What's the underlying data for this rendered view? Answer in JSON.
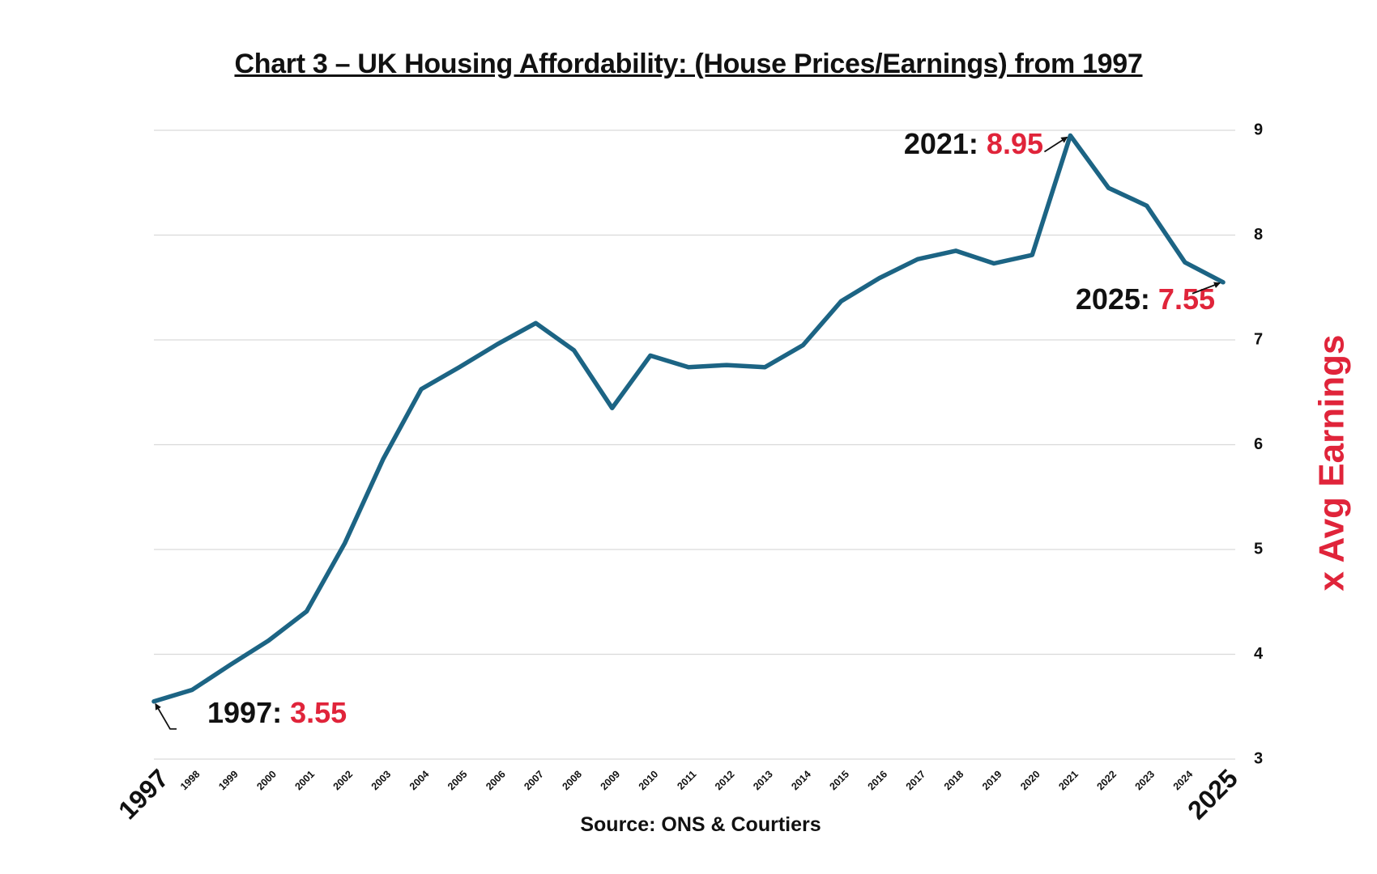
{
  "colors": {
    "line": "#1c6484",
    "accent": "#e0243a",
    "text": "#111111",
    "grid": "#d9d9d9"
  },
  "chart_data": {
    "type": "line",
    "title": "Chart 3 – UK Housing Affordability: (House Prices/Earnings) from 1997",
    "ylabel": "x Avg Earnings",
    "source": "Source: ONS & Courtiers",
    "ylim": [
      3,
      9
    ],
    "yticks": [
      3,
      4,
      5,
      6,
      7,
      8,
      9
    ],
    "y_axis_side": "right",
    "grid": true,
    "legend": "none",
    "categories": [
      "1997",
      "1998",
      "1999",
      "2000",
      "2001",
      "2002",
      "2003",
      "2004",
      "2005",
      "2006",
      "2007",
      "2008",
      "2009",
      "2010",
      "2011",
      "2012",
      "2013",
      "2014",
      "2015",
      "2016",
      "2017",
      "2018",
      "2019",
      "2020",
      "2021",
      "2022",
      "2023",
      "2024",
      "2025"
    ],
    "values": [
      3.55,
      3.66,
      3.9,
      4.13,
      4.41,
      5.06,
      5.86,
      6.53,
      6.74,
      6.96,
      7.16,
      6.9,
      6.35,
      6.85,
      6.74,
      6.76,
      6.74,
      6.95,
      7.37,
      7.59,
      7.77,
      7.85,
      7.73,
      7.81,
      8.95,
      8.45,
      8.28,
      7.74,
      7.55
    ],
    "annotations": [
      {
        "year": "1997",
        "year_label": "1997:",
        "value_label": "3.55"
      },
      {
        "year": "2021",
        "year_label": "2021:",
        "value_label": "8.95"
      },
      {
        "year": "2025",
        "year_label": "2025:",
        "value_label": "7.55"
      }
    ]
  }
}
